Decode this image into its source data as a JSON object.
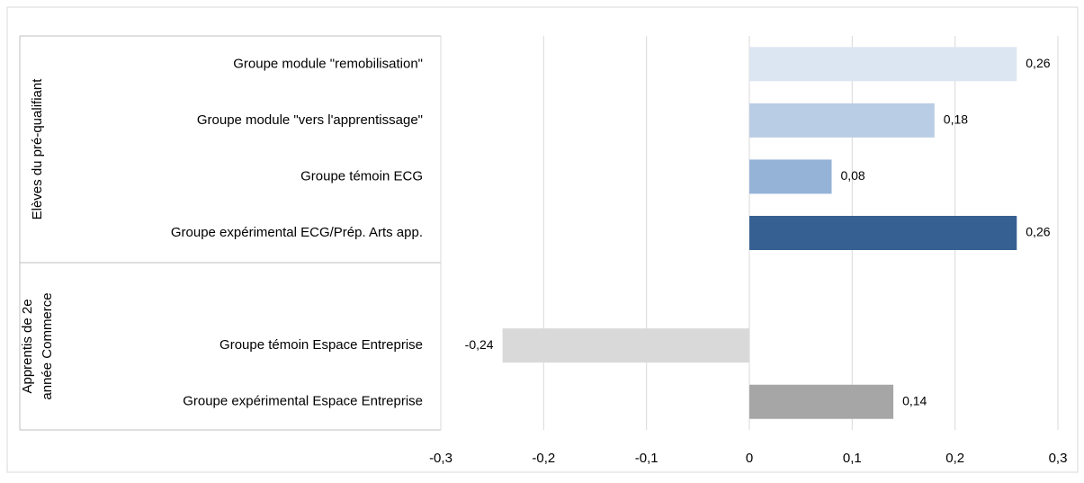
{
  "chart_data": {
    "type": "barh",
    "categories": [
      "Groupe module \"remobilisation\"",
      "Groupe module \"vers l'apprentissage\"",
      "Groupe témoin ECG",
      "Groupe expérimental ECG/Prép. Arts app.",
      null,
      "Groupe témoin Espace Entreprise",
      "Groupe expérimental Espace Entreprise"
    ],
    "values": [
      0.26,
      0.18,
      0.08,
      0.26,
      null,
      -0.24,
      0.14
    ],
    "value_labels": [
      "0,26",
      "0,18",
      "0,08",
      "0,26",
      null,
      "-0,24",
      "0,14"
    ],
    "colors": [
      "#dce6f2",
      "#b9cde5",
      "#95b3d7",
      "#366092",
      null,
      "#d9d9d9",
      "#a6a6a6"
    ],
    "groups": [
      {
        "lines": [
          "Elèves du pré-qualifiant"
        ]
      },
      {
        "lines": [
          "Apprentis de 2e",
          "année Commerce"
        ]
      }
    ],
    "xlim": [
      -0.3,
      0.3
    ],
    "xticks": [
      {
        "value": -0.3,
        "label": "-0,3"
      },
      {
        "value": -0.2,
        "label": "-0,2"
      },
      {
        "value": -0.1,
        "label": "-0,1"
      },
      0,
      {
        "value": 0.1,
        "label": "0,1"
      },
      {
        "value": 0.2,
        "label": "0,2"
      },
      {
        "value": 0.3,
        "label": "0,3"
      }
    ],
    "grid": true
  }
}
